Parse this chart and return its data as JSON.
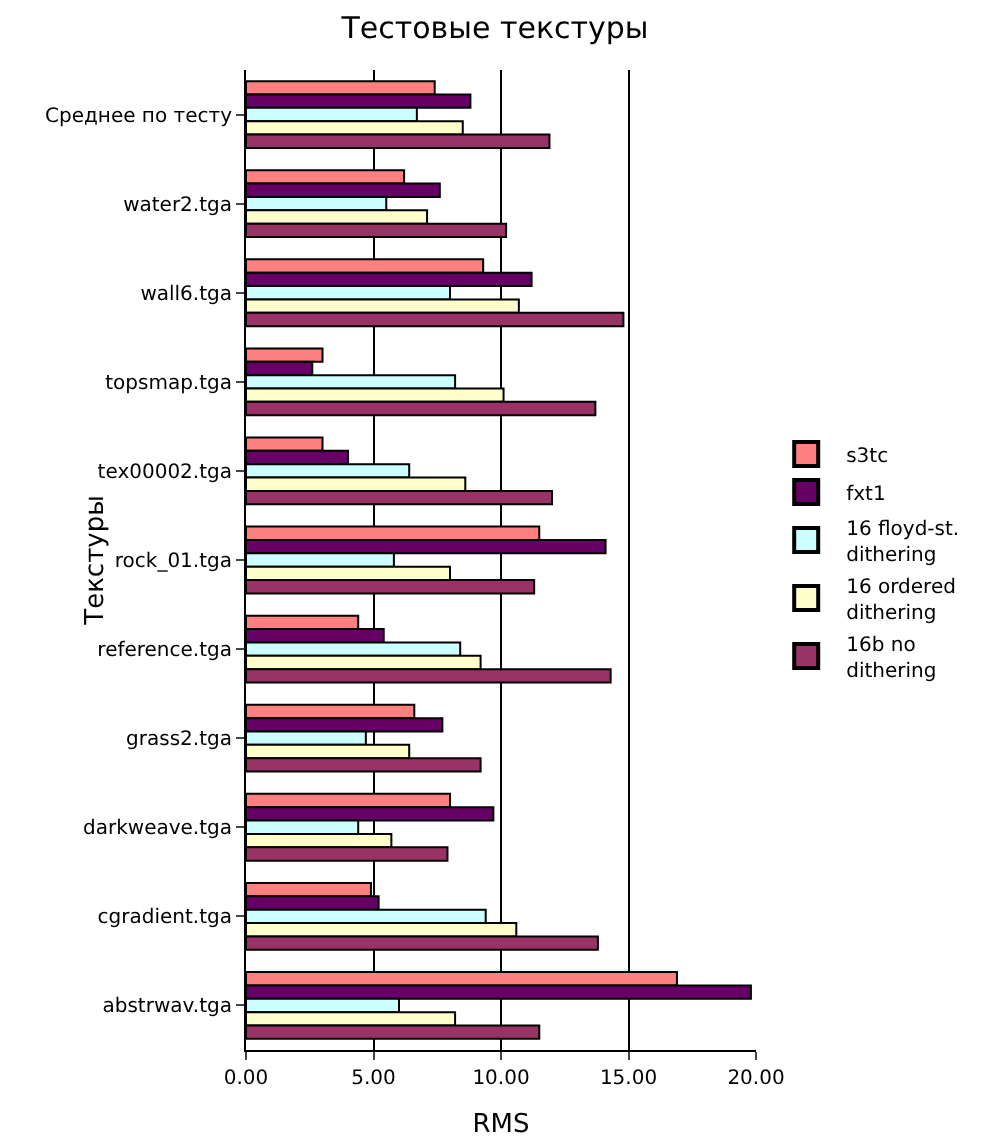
{
  "chart_data": {
    "type": "bar",
    "orientation": "horizontal",
    "title": "Тестовые текстуры",
    "xlabel": "RMS",
    "ylabel": "Текстуры",
    "categories": [
      "Среднее по тесту",
      "water2.tga",
      "wall6.tga",
      "topsmap.tga",
      "tex00002.tga",
      "rock_01.tga",
      "reference.tga",
      "grass2.tga",
      "darkweave.tga",
      "cgradient.tga",
      "abstrwav.tga"
    ],
    "series": [
      {
        "name": "s3tc",
        "color": "#ff8080",
        "values": [
          7.4,
          6.2,
          9.3,
          3.0,
          3.0,
          11.5,
          4.4,
          6.6,
          8.0,
          4.9,
          16.9
        ]
      },
      {
        "name": "fxt1",
        "color": "#660066",
        "values": [
          8.8,
          7.6,
          11.2,
          2.6,
          4.0,
          14.1,
          5.4,
          7.7,
          9.7,
          5.2,
          19.8
        ]
      },
      {
        "name": "16 floyd-st. dithering",
        "color": "#ccffff",
        "values": [
          6.7,
          5.5,
          8.0,
          8.2,
          6.4,
          5.8,
          8.4,
          4.7,
          4.4,
          9.4,
          6.0
        ]
      },
      {
        "name": "16 ordered dithering",
        "color": "#ffffcc",
        "values": [
          8.5,
          7.1,
          10.7,
          10.1,
          8.6,
          8.0,
          9.2,
          6.4,
          5.7,
          10.6,
          8.2
        ]
      },
      {
        "name": "16b no dithering",
        "color": "#993366",
        "values": [
          11.9,
          10.2,
          14.8,
          13.7,
          12.0,
          11.3,
          14.3,
          9.2,
          7.9,
          13.8,
          11.5
        ]
      }
    ],
    "xlim": [
      0,
      20
    ],
    "xticks": [
      {
        "value": 0,
        "label": "0.00"
      },
      {
        "value": 5,
        "label": "5.00"
      },
      {
        "value": 10,
        "label": "10.00"
      },
      {
        "value": 15,
        "label": "15.00"
      },
      {
        "value": 20,
        "label": "20.00"
      }
    ],
    "grid": "x",
    "legend": "right"
  }
}
